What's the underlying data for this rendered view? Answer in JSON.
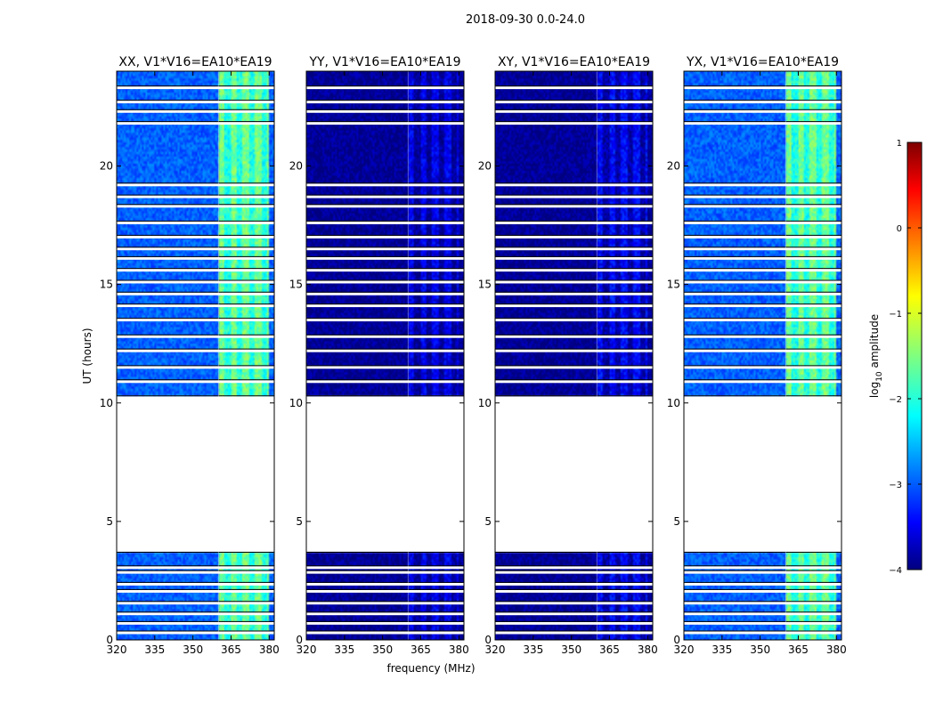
{
  "figure_title": "2018-09-30 0.0-24.0",
  "chart_data": {
    "type": "heatmap",
    "shared": {
      "x": {
        "label": "frequency (MHz)",
        "range": [
          320,
          382
        ],
        "ticks": [
          320,
          335,
          350,
          365,
          380
        ],
        "tick_labels": [
          "320",
          "335",
          "350",
          "365",
          "380"
        ]
      },
      "y": {
        "label": "UT (hours)",
        "range": [
          0,
          24
        ],
        "ticks": [
          0,
          5,
          10,
          15,
          20
        ],
        "tick_labels": [
          "0",
          "5",
          "10",
          "15",
          "20"
        ]
      },
      "data_gaps_ut_hours": [
        [
          3.7,
          10.3
        ]
      ],
      "flagged_ut_rows": [
        0.3,
        0.7,
        1.1,
        1.55,
        2.05,
        2.35,
        2.85,
        3.05,
        10.9,
        11.5,
        12.2,
        12.8,
        13.5,
        14.1,
        14.6,
        15.1,
        15.6,
        16.1,
        16.5,
        17.0,
        17.6,
        18.3,
        18.7,
        19.2,
        21.8,
        22.3,
        22.7,
        23.3
      ],
      "bright_band_mhz": [
        360,
        380
      ],
      "rfi_line_mhz": 360
    },
    "panels": [
      {
        "title": "XX, V1*V16=EA10*EA19",
        "mean_log_amp": -2.9,
        "band_log_amp": -1.8
      },
      {
        "title": "YY, V1*V16=EA10*EA19",
        "mean_log_amp": -3.9,
        "band_log_amp": -3.7
      },
      {
        "title": "XY, V1*V16=EA10*EA19",
        "mean_log_amp": -3.9,
        "band_log_amp": -3.6
      },
      {
        "title": "YX, V1*V16=EA10*EA19",
        "mean_log_amp": -2.9,
        "band_log_amp": -1.8
      }
    ],
    "colorbar": {
      "label": "log10 amplitude",
      "label_prefix": "log",
      "label_sub": "10",
      "label_suffix": " amplitude",
      "colormap": "jet",
      "range": [
        -4,
        1
      ],
      "ticks": [
        1,
        0,
        -1,
        -2,
        -3,
        -4
      ],
      "tick_labels": [
        "1",
        "0",
        "−1",
        "−2",
        "−3",
        "−4"
      ]
    }
  }
}
